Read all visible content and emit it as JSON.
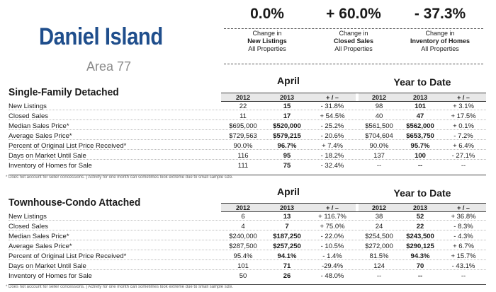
{
  "header": {
    "title": "Daniel Island",
    "subtitle": "Area 77"
  },
  "stats": [
    {
      "pct": "0.0%",
      "line1": "Change in",
      "line2": "New Listings",
      "line3": "All Properties"
    },
    {
      "pct": "+ 60.0%",
      "line1": "Change in",
      "line2": "Closed Sales",
      "line3": "All Properties"
    },
    {
      "pct": "- 37.3%",
      "line1": "Change in",
      "line2": "Inventory of Homes",
      "line3": "All Properties"
    }
  ],
  "col_headers": {
    "y1": "2012",
    "y2": "2013",
    "chg": "+ / –"
  },
  "sections": [
    {
      "title": "Single-Family Detached",
      "group1": "April",
      "group2": "Year to Date",
      "rows": [
        {
          "label": "New Listings",
          "a12": "22",
          "a13": "15",
          "ach": "- 31.8%",
          "y12": "98",
          "y13": "101",
          "ych": "+ 3.1%"
        },
        {
          "label": "Closed Sales",
          "a12": "11",
          "a13": "17",
          "ach": "+ 54.5%",
          "y12": "40",
          "y13": "47",
          "ych": "+ 17.5%"
        },
        {
          "label": "Median Sales Price*",
          "a12": "$695,000",
          "a13": "$520,000",
          "ach": "- 25.2%",
          "y12": "$561,500",
          "y13": "$562,000",
          "ych": "+ 0.1%"
        },
        {
          "label": "Average Sales Price*",
          "a12": "$729,563",
          "a13": "$579,215",
          "ach": "- 20.6%",
          "y12": "$704,604",
          "y13": "$653,750",
          "ych": "- 7.2%"
        },
        {
          "label": "Percent of Original List Price Received*",
          "a12": "90.0%",
          "a13": "96.7%",
          "ach": "+ 7.4%",
          "y12": "90.0%",
          "y13": "95.7%",
          "ych": "+ 6.4%"
        },
        {
          "label": "Days on Market Until Sale",
          "a12": "116",
          "a13": "95",
          "ach": "- 18.2%",
          "y12": "137",
          "y13": "100",
          "ych": "- 27.1%"
        },
        {
          "label": "Inventory of Homes for Sale",
          "a12": "111",
          "a13": "75",
          "ach": "- 32.4%",
          "y12": "--",
          "y13": "--",
          "ych": "--"
        }
      ],
      "footnote": "* Does not account for seller concessions.  |  Activity for one month can sometimes look extreme due to small sample size."
    },
    {
      "title": "Townhouse-Condo Attached",
      "group1": "April",
      "group2": "Year to Date",
      "rows": [
        {
          "label": "New Listings",
          "a12": "6",
          "a13": "13",
          "ach": "+ 116.7%",
          "y12": "38",
          "y13": "52",
          "ych": "+ 36.8%"
        },
        {
          "label": "Closed Sales",
          "a12": "4",
          "a13": "7",
          "ach": "+ 75.0%",
          "y12": "24",
          "y13": "22",
          "ych": "- 8.3%"
        },
        {
          "label": "Median Sales Price*",
          "a12": "$240,000",
          "a13": "$187,250",
          "ach": "- 22.0%",
          "y12": "$254,500",
          "y13": "$243,500",
          "ych": "- 4.3%"
        },
        {
          "label": "Average Sales Price*",
          "a12": "$287,500",
          "a13": "$257,250",
          "ach": "- 10.5%",
          "y12": "$272,000",
          "y13": "$290,125",
          "ych": "+ 6.7%"
        },
        {
          "label": "Percent of Original List Price Received*",
          "a12": "95.4%",
          "a13": "94.1%",
          "ach": "- 1.4%",
          "y12": "81.5%",
          "y13": "94.3%",
          "ych": "+ 15.7%"
        },
        {
          "label": "Days on Market Until Sale",
          "a12": "101",
          "a13": "71",
          "ach": "-29.4%",
          "y12": "124",
          "y13": "70",
          "ych": "- 43.1%"
        },
        {
          "label": "Inventory of Homes for Sale",
          "a12": "50",
          "a13": "26",
          "ach": "- 48.0%",
          "y12": "--",
          "y13": "--",
          "ych": "--"
        }
      ],
      "footnote": "* Does not account for seller concessions.  |  Activity for one month can sometimes look extreme due to small sample size."
    }
  ]
}
